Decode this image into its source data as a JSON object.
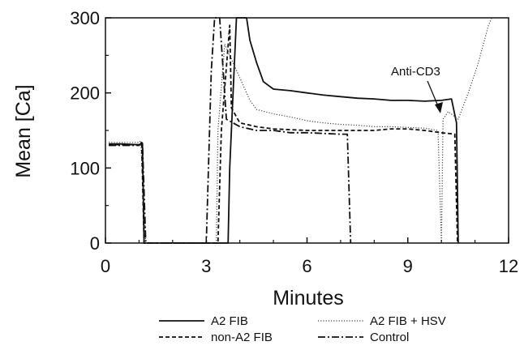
{
  "chart_data": {
    "type": "line",
    "xlabel": "Minutes",
    "ylabel": "Mean [Ca]",
    "xlim": [
      0,
      12
    ],
    "ylim": [
      0,
      300
    ],
    "xticks": [
      0,
      3,
      6,
      9,
      12
    ],
    "yticks": [
      0,
      100,
      200,
      300
    ],
    "grid": false,
    "legend_position": "bottom",
    "annotation": {
      "text": "Anti-CD3",
      "x": 9.95,
      "y": 175
    },
    "series": [
      {
        "name": "A2 FIB",
        "style": "solid",
        "color": "#111111",
        "points": [
          [
            0.1,
            132
          ],
          [
            0.5,
            132
          ],
          [
            1.0,
            131
          ],
          [
            1.1,
            133
          ],
          [
            1.15,
            0
          ],
          [
            3.65,
            0
          ],
          [
            3.7,
            100
          ],
          [
            3.9,
            300
          ],
          [
            4.2,
            300
          ],
          [
            4.3,
            270
          ],
          [
            4.5,
            240
          ],
          [
            4.7,
            215
          ],
          [
            5.0,
            205
          ],
          [
            5.5,
            203
          ],
          [
            6.0,
            200
          ],
          [
            6.5,
            197
          ],
          [
            7.0,
            195
          ],
          [
            7.5,
            193
          ],
          [
            8.0,
            192
          ],
          [
            8.5,
            190
          ],
          [
            9.0,
            190
          ],
          [
            9.5,
            189
          ],
          [
            10.0,
            190
          ],
          [
            10.3,
            192
          ],
          [
            10.45,
            160
          ],
          [
            10.5,
            0
          ]
        ]
      },
      {
        "name": "A2 FIB + HSV",
        "style": "dotted",
        "color": "#444444",
        "points": [
          [
            0.1,
            134
          ],
          [
            1.0,
            134
          ],
          [
            1.05,
            136
          ],
          [
            1.2,
            0
          ],
          [
            3.3,
            0
          ],
          [
            3.35,
            150
          ],
          [
            3.55,
            265
          ],
          [
            3.8,
            240
          ],
          [
            4.0,
            220
          ],
          [
            4.3,
            190
          ],
          [
            4.5,
            178
          ],
          [
            5.0,
            172
          ],
          [
            5.5,
            168
          ],
          [
            6.0,
            163
          ],
          [
            6.5,
            160
          ],
          [
            7.0,
            158
          ],
          [
            7.5,
            157
          ],
          [
            8.0,
            155
          ],
          [
            8.5,
            155
          ],
          [
            9.0,
            154
          ],
          [
            9.5,
            153
          ],
          [
            9.9,
            150
          ],
          [
            10.0,
            0
          ],
          [
            10.05,
            165
          ],
          [
            10.2,
            175
          ],
          [
            10.5,
            165
          ],
          [
            10.8,
            200
          ],
          [
            11.1,
            240
          ],
          [
            11.4,
            290
          ],
          [
            11.5,
            300
          ]
        ]
      },
      {
        "name": "non-A2 FIB",
        "style": "dashed",
        "color": "#111111",
        "points": [
          [
            0.1,
            131
          ],
          [
            1.0,
            131
          ],
          [
            1.08,
            132
          ],
          [
            1.15,
            0
          ],
          [
            3.35,
            0
          ],
          [
            3.45,
            150
          ],
          [
            3.7,
            290
          ],
          [
            3.75,
            180
          ],
          [
            4.0,
            160
          ],
          [
            4.5,
            155
          ],
          [
            5.0,
            152
          ],
          [
            6.0,
            150
          ],
          [
            7.0,
            150
          ],
          [
            8.0,
            150
          ],
          [
            8.5,
            152
          ],
          [
            9.0,
            152
          ],
          [
            9.5,
            150
          ],
          [
            10.0,
            147
          ],
          [
            10.4,
            145
          ],
          [
            10.48,
            0
          ]
        ]
      },
      {
        "name": "Control",
        "style": "dashdot",
        "color": "#111111",
        "points": [
          [
            0.1,
            130
          ],
          [
            1.0,
            130
          ],
          [
            1.1,
            135
          ],
          [
            1.2,
            0
          ],
          [
            3.0,
            0
          ],
          [
            3.15,
            230
          ],
          [
            3.25,
            300
          ],
          [
            3.4,
            300
          ],
          [
            3.6,
            165
          ],
          [
            4.0,
            155
          ],
          [
            4.5,
            150
          ],
          [
            5.0,
            150
          ],
          [
            5.5,
            147
          ],
          [
            6.0,
            147
          ],
          [
            6.5,
            146
          ],
          [
            7.0,
            145
          ],
          [
            7.2,
            145
          ],
          [
            7.3,
            0
          ]
        ]
      }
    ]
  }
}
